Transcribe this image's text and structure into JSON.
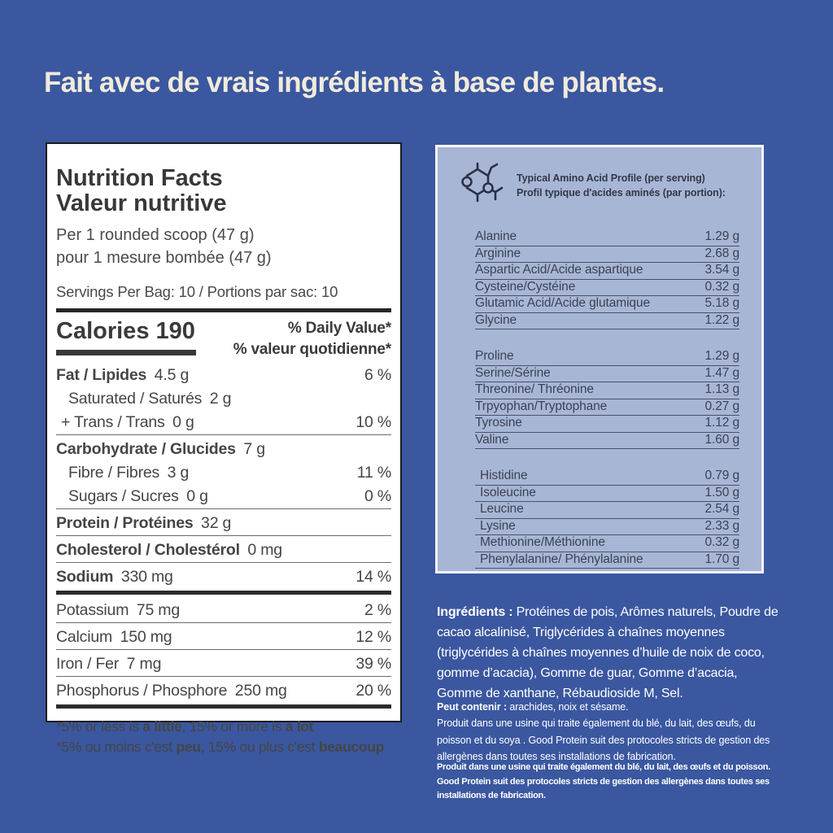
{
  "page": {
    "title": "Fait avec de vrais ingrédients à base de plantes.",
    "bg_color": "#3A57A0",
    "title_color": "#F0EBDB",
    "panel_blue": "#A8B6D6"
  },
  "nutrition_panel": {
    "title_en": "Nutrition Facts",
    "title_fr": "Valeur nutritive",
    "serving_en": "Per 1 rounded scoop (47 g)",
    "serving_fr": "pour 1 mesure bombée (47 g)",
    "servings_line": "Servings Per Bag: 10 / Portions par sac: 10",
    "calories_label": "Calories",
    "calories_value": "190",
    "dv_header_en": "% Daily Value*",
    "dv_header_fr": "% valeur quotidienne*",
    "rows": [
      {
        "name": "Fat / Lipides",
        "amount": "4.5 g",
        "dv": "6 %",
        "bold": true,
        "indent": 0,
        "sep": "none"
      },
      {
        "name": "Saturated / Saturés",
        "amount": "2 g",
        "dv": "",
        "bold": false,
        "indent": 1,
        "sep": "none"
      },
      {
        "name": "+ Trans / Trans",
        "amount": "0 g",
        "dv": "10 %",
        "bold": false,
        "indent": 0.5,
        "sep": "thin"
      },
      {
        "name": "Carbohydrate / Glucides",
        "amount": "7 g",
        "dv": "",
        "bold": true,
        "indent": 0,
        "sep": "none"
      },
      {
        "name": "Fibre / Fibres",
        "amount": "3 g",
        "dv": "11 %",
        "bold": false,
        "indent": 1,
        "sep": "none"
      },
      {
        "name": "Sugars / Sucres",
        "amount": "0 g",
        "dv": "0 %",
        "bold": false,
        "indent": 1,
        "sep": "thin"
      },
      {
        "name": "Protein / Protéines",
        "amount": "32 g",
        "dv": "",
        "bold": true,
        "indent": 0,
        "sep": "thin"
      },
      {
        "name": "Cholesterol / Cholestérol",
        "amount": "0 mg",
        "dv": "",
        "bold": true,
        "indent": 0,
        "sep": "thin"
      },
      {
        "name": "Sodium",
        "amount": "330 mg",
        "dv": "14 %",
        "bold": true,
        "indent": 0,
        "sep": "thick"
      },
      {
        "name": "Potassium",
        "amount": "75 mg",
        "dv": "2 %",
        "bold": false,
        "indent": 0,
        "sep": "thin"
      },
      {
        "name": "Calcium",
        "amount": "150 mg",
        "dv": "12 %",
        "bold": false,
        "indent": 0,
        "sep": "thin"
      },
      {
        "name": "Iron / Fer",
        "amount": "7 mg",
        "dv": "39 %",
        "bold": false,
        "indent": 0,
        "sep": "thin"
      },
      {
        "name": "Phosphorus / Phosphore",
        "amount": "250 mg",
        "dv": "20 %",
        "bold": false,
        "indent": 0,
        "sep": "thick"
      }
    ],
    "footnotes": [
      [
        {
          "t": "*5% or less is ",
          "b": false
        },
        {
          "t": "a little",
          "b": true
        },
        {
          "t": ", 15% or more is ",
          "b": false
        },
        {
          "t": "a lot",
          "b": true
        }
      ],
      [
        {
          "t": "*5% ou moins c'est ",
          "b": false
        },
        {
          "t": "peu",
          "b": true
        },
        {
          "t": ", 15% ou plus c'est ",
          "b": false
        },
        {
          "t": "beaucoup",
          "b": true
        }
      ]
    ]
  },
  "amino_panel": {
    "icon": "molecule-icon",
    "header_en": "Typical Amino Acid Profile (per serving)",
    "header_fr": "Profil typique d'acides aminés (par portion):",
    "groups": [
      {
        "indent": false,
        "rows": [
          [
            "Alanine",
            "1.29 g"
          ],
          [
            "Arginine",
            "2.68 g"
          ],
          [
            "Aspartic Acid/Acide aspartique",
            "3.54 g"
          ],
          [
            "Cysteine/Cystéine",
            "0.32 g"
          ],
          [
            "Glutamic Acid/Acide glutamique",
            "5.18 g"
          ],
          [
            "Glycine",
            "1.22 g"
          ]
        ]
      },
      {
        "indent": false,
        "rows": [
          [
            "Proline",
            "1.29 g"
          ],
          [
            "Serine/Sérine",
            "1.47 g"
          ],
          [
            "Threonine/ Thréonine",
            "1.13 g"
          ],
          [
            "Trpyophan/Tryptophane",
            "0.27 g"
          ],
          [
            "Tyrosine",
            "1.12 g"
          ],
          [
            "Valine",
            "1.60 g"
          ]
        ]
      },
      {
        "indent": true,
        "rows": [
          [
            "Histidine",
            "0.79 g"
          ],
          [
            "Isoleucine",
            "1.50 g"
          ],
          [
            "Leucine",
            "2.54 g"
          ],
          [
            "Lysine",
            "2.33 g"
          ],
          [
            "Methionine/Méthionine",
            "0.32 g"
          ],
          [
            "Phenylalanine/ Phénylalanine",
            "1.70 g"
          ]
        ]
      }
    ]
  },
  "ingredients": {
    "segments": [
      {
        "t": "Ingrédients : ",
        "b": true
      },
      {
        "t": "Protéines de pois, Arômes naturels, Poudre de",
        "b": false,
        "br": true
      },
      {
        "t": "cacao alcalinisé, Triglycérides à chaînes moyennes",
        "b": false,
        "br": true
      },
      {
        "t": "(triglycérides à chaînes moyennes d’huile de noix de coco,",
        "b": false,
        "br": true
      },
      {
        "t": "gomme d’acacia), Gomme de guar, Gomme d’acacia,",
        "b": false,
        "br": true
      },
      {
        "t": "Gomme de xanthane, Rébaudioside M, Sel.",
        "b": false
      }
    ]
  },
  "allergen": {
    "segments": [
      {
        "t": "Peut contenir : ",
        "b": true
      },
      {
        "t": "arachides, noix et sésame.",
        "b": false,
        "br": true
      },
      {
        "t": "Produit dans une usine qui traite également du blé, du lait, des œufs, du",
        "b": false,
        "br": true
      },
      {
        "t": "poisson et du soya . Good Protein suit des protocoles stricts de gestion des",
        "b": false,
        "br": true
      },
      {
        "t": "allergènes dans toutes ses installations de fabrication.",
        "b": false
      }
    ]
  },
  "facility": {
    "segments": [
      {
        "t": "Produit dans une usine qui traite également du blé, du lait, des œufs et du poisson.",
        "b": true,
        "br": true
      },
      {
        "t": "Good Protein suit des protocoles stricts de gestion des allergènes dans toutes ses",
        "b": true,
        "br": true
      },
      {
        "t": "installations de fabrication.",
        "b": true
      }
    ]
  }
}
